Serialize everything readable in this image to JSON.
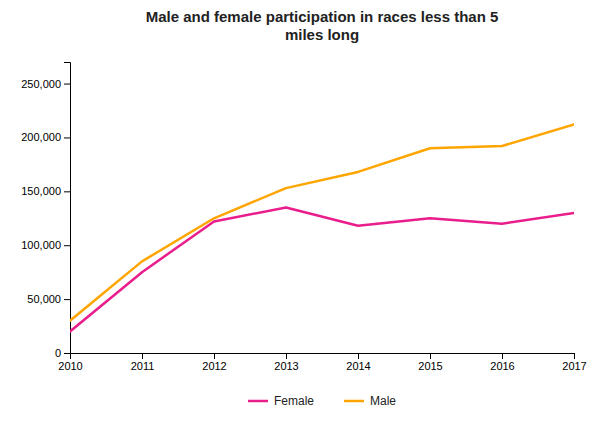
{
  "chart_data": {
    "type": "line",
    "title": "Male and female participation in races less than 5\nmiles long",
    "x": [
      2010,
      2011,
      2012,
      2013,
      2014,
      2015,
      2016,
      2017
    ],
    "xlim": [
      2010,
      2017
    ],
    "xticks": [
      2010,
      2011,
      2012,
      2013,
      2014,
      2015,
      2016,
      2017
    ],
    "ylim": [
      0,
      270000
    ],
    "yticks": [
      0,
      {
        "value": 50000,
        "label": "50,000"
      },
      {
        "value": 100000,
        "label": "100,000"
      },
      {
        "value": 150000,
        "label": "150,000"
      },
      {
        "value": 200000,
        "label": "200,000"
      },
      {
        "value": 250000,
        "label": "250,000"
      }
    ],
    "grid": false,
    "legend": "bottom",
    "series": [
      {
        "name": "Female",
        "color": "#e91e8c",
        "values": [
          20000,
          75000,
          122000,
          135000,
          118000,
          125000,
          120000,
          130000
        ]
      },
      {
        "name": "Male",
        "color": "#ffa500",
        "values": [
          30000,
          85000,
          125000,
          153000,
          168000,
          190000,
          192000,
          212000
        ]
      }
    ]
  }
}
